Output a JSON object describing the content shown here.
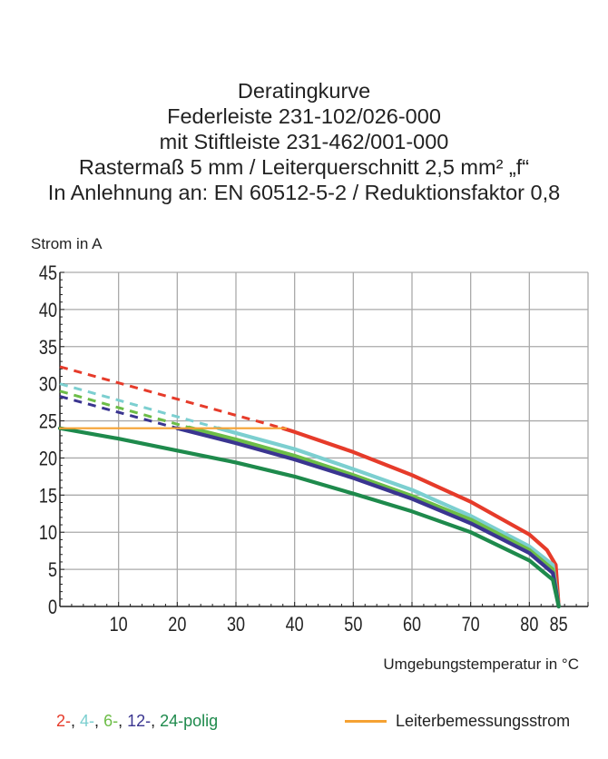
{
  "chart_data": {
    "type": "line",
    "title_lines": [
      "Deratingkurve",
      "Federleiste 231-102/026-000",
      "mit Stiftleiste 231-462/001-000",
      "Rastermaß 5 mm / Leiterquerschnitt 2,5 mm² „f“",
      "In Anlehnung an: EN 60512-5-2 / Reduktionsfaktor 0,8"
    ],
    "ylabel": "Strom in A",
    "xlabel": "Umgebungstemperatur in °C",
    "xlim": [
      0,
      90
    ],
    "ylim": [
      0,
      45
    ],
    "x_ticks": [
      "10",
      "20",
      "30",
      "40",
      "50",
      "60",
      "70",
      "80",
      "85"
    ],
    "x_tick_values": [
      10,
      20,
      30,
      40,
      50,
      60,
      70,
      80,
      85
    ],
    "y_ticks": [
      "0",
      "5",
      "10",
      "15",
      "20",
      "25",
      "30",
      "35",
      "40",
      "45"
    ],
    "y_tick_values": [
      0,
      5,
      10,
      15,
      20,
      25,
      30,
      35,
      40,
      45
    ],
    "grid": true,
    "legend_position": "bottom",
    "legend": {
      "poles": [
        {
          "text": "2-",
          "color": "#e63b2a"
        },
        {
          "text": "4-",
          "color": "#7ccfd0"
        },
        {
          "text": "6-",
          "color": "#6cbd47"
        },
        {
          "text": "12-",
          "color": "#3a3590"
        },
        {
          "text": "24",
          "color": "#1e8a4c"
        }
      ],
      "poles_suffix": "-polig",
      "rated_current": "Leiterbemessungsstrom",
      "rated_current_color": "#f5a233"
    },
    "series": [
      {
        "name": "2-polig",
        "color": "#e63b2a",
        "dashed": [
          [
            0,
            32.3
          ],
          [
            38,
            24
          ]
        ],
        "solid": [
          [
            38,
            24
          ],
          [
            40,
            23.5
          ],
          [
            50,
            20.8
          ],
          [
            60,
            17.7
          ],
          [
            70,
            14.1
          ],
          [
            80,
            9.7
          ],
          [
            83,
            7.6
          ],
          [
            84.5,
            5.6
          ],
          [
            85,
            0
          ]
        ]
      },
      {
        "name": "4-polig",
        "color": "#7ccfd0",
        "dashed": [
          [
            0,
            30
          ],
          [
            27,
            24
          ]
        ],
        "solid": [
          [
            27,
            24
          ],
          [
            40,
            21.2
          ],
          [
            50,
            18.5
          ],
          [
            60,
            15.7
          ],
          [
            70,
            12.2
          ],
          [
            80,
            8.1
          ],
          [
            84,
            5.6
          ],
          [
            85,
            0
          ]
        ]
      },
      {
        "name": "6-polig",
        "color": "#6cbd47",
        "dashed": [
          [
            0,
            29
          ],
          [
            22,
            24.1
          ]
        ],
        "solid": [
          [
            22,
            24.1
          ],
          [
            30,
            22.5
          ],
          [
            40,
            20.3
          ],
          [
            50,
            17.7
          ],
          [
            60,
            14.9
          ],
          [
            70,
            11.7
          ],
          [
            80,
            7.6
          ],
          [
            84,
            5
          ],
          [
            85,
            0
          ]
        ]
      },
      {
        "name": "12-polig",
        "color": "#3a3590",
        "dashed": [
          [
            0,
            28.3
          ],
          [
            20,
            24
          ]
        ],
        "solid": [
          [
            20,
            24
          ],
          [
            30,
            22
          ],
          [
            40,
            19.8
          ],
          [
            50,
            17.3
          ],
          [
            60,
            14.5
          ],
          [
            70,
            11.2
          ],
          [
            80,
            7.2
          ],
          [
            84,
            4.5
          ],
          [
            85,
            0
          ]
        ]
      },
      {
        "name": "24-polig",
        "color": "#1e8a4c",
        "dashed": [],
        "solid": [
          [
            0,
            24
          ],
          [
            10,
            22.6
          ],
          [
            20,
            21
          ],
          [
            30,
            19.4
          ],
          [
            40,
            17.5
          ],
          [
            50,
            15.2
          ],
          [
            60,
            12.8
          ],
          [
            70,
            10
          ],
          [
            80,
            6.2
          ],
          [
            84,
            3.6
          ],
          [
            85,
            0
          ]
        ]
      },
      {
        "name": "Leiterbemessungsstrom",
        "color": "#f5a233",
        "dashed": [],
        "solid": [
          [
            0,
            24
          ],
          [
            38.5,
            24
          ]
        ]
      }
    ]
  }
}
